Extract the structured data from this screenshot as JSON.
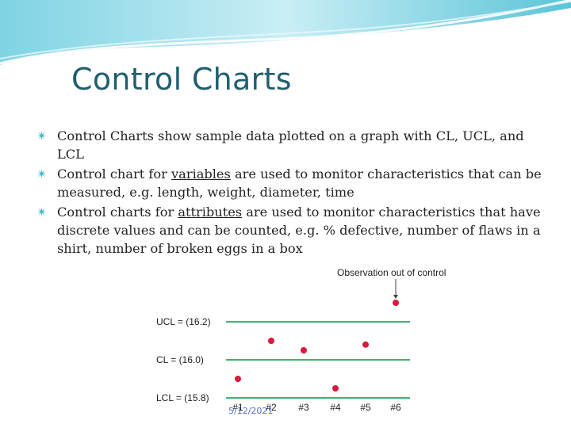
{
  "slide": {
    "title": "Control Charts",
    "bullets": [
      {
        "lead": "Control Charts",
        "rest": " show sample data plotted on a graph with CL, UCL, and LCL"
      },
      {
        "lead": "Control chart for ",
        "term": "variables",
        "rest": " are used to monitor characteristics that can be measured, e.g. length, weight, diameter, time"
      },
      {
        "lead": "Control charts for ",
        "term": "attributes",
        "rest": " are used to monitor characteristics that have discrete values and can be counted, e.g. % defective, number of flaws in a shirt, number of broken eggs in a box"
      }
    ],
    "footer": "5/12/2021"
  },
  "chart_data": {
    "type": "scatter",
    "title": "",
    "annotation": "Observation out of control",
    "categories": [
      "#1",
      "#2",
      "#3",
      "#4",
      "#5",
      "#6"
    ],
    "values": [
      15.9,
      16.1,
      16.05,
      15.85,
      16.08,
      16.3
    ],
    "lines": [
      {
        "label": "UCL = (16.2)",
        "value": 16.2
      },
      {
        "label": "CL = (16.0)",
        "value": 16.0
      },
      {
        "label": "LCL = (15.8)",
        "value": 15.8
      }
    ],
    "ylim": [
      15.8,
      16.35
    ],
    "colors": {
      "lines": "#3cb371",
      "points": "#d81b3a"
    }
  }
}
